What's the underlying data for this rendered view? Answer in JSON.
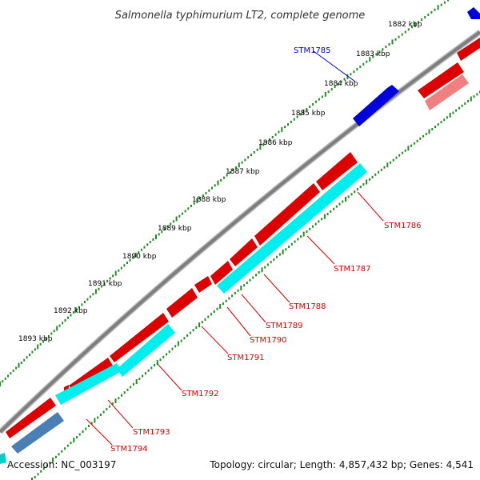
{
  "title": "Salmonella typhimurium LT2, complete genome",
  "accession": "Accession: NC_003197",
  "summary": "Topology: circular; Length: 4,857,432 bp; Genes: 4,541",
  "scale_ticks": [
    "1882 kbp",
    "1883 kbp",
    "1884 kbp",
    "1885 kbp",
    "1886 kbp",
    "1887 kbp",
    "1888 kbp",
    "1889 kbp",
    "1890 kbp",
    "1891 kbp",
    "1892 kbp",
    "1893 kbp"
  ],
  "genes": [
    {
      "label": "STM1785",
      "color": "#0000cc"
    },
    {
      "label": "STM1786",
      "color": "#dd0000"
    },
    {
      "label": "STM1787",
      "color": "#dd0000"
    },
    {
      "label": "STM1788",
      "color": "#dd0000"
    },
    {
      "label": "STM1789",
      "color": "#dd0000"
    },
    {
      "label": "STM1790",
      "color": "#dd0000"
    },
    {
      "label": "STM1791",
      "color": "#dd0000"
    },
    {
      "label": "STM1792",
      "color": "#dd0000"
    },
    {
      "label": "STM1793",
      "color": "#dd0000"
    },
    {
      "label": "STM1794",
      "color": "#dd0000"
    }
  ],
  "colors": {
    "backbone": "#808080",
    "tick": "#228b22",
    "cds": "#ee0000",
    "cds_light": "#f08080",
    "gene_band": "#00eeee",
    "gene_dark": "#4a7fb5",
    "forward_cds": "#0000dd"
  }
}
